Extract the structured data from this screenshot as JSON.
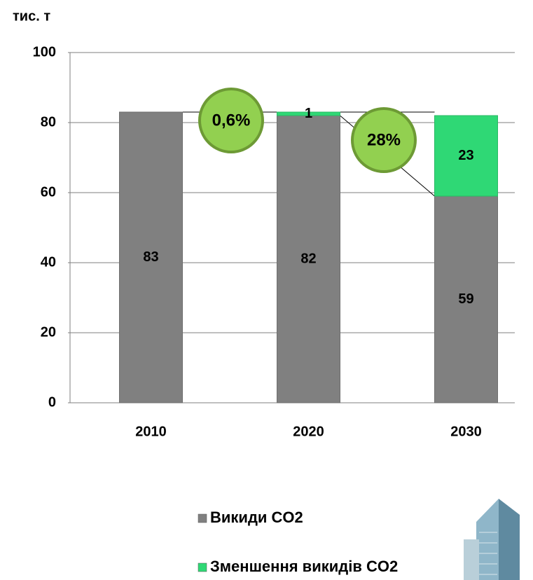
{
  "chart_data": {
    "type": "stacked_bar",
    "y_axis_label": "тис. т",
    "categories": [
      "2010",
      "2020",
      "2030"
    ],
    "series": [
      {
        "name": "Викиди CO2",
        "color": "#808080",
        "values": [
          83,
          82,
          59
        ]
      },
      {
        "name": "Зменшення викидів CO2",
        "color": "#2fd875",
        "values": [
          null,
          1,
          23
        ]
      }
    ],
    "annotations": [
      "0,6%",
      "28%"
    ],
    "ylim": [
      0,
      100
    ],
    "yticks": [
      0,
      20,
      40,
      60,
      80,
      100
    ],
    "grid": true
  }
}
